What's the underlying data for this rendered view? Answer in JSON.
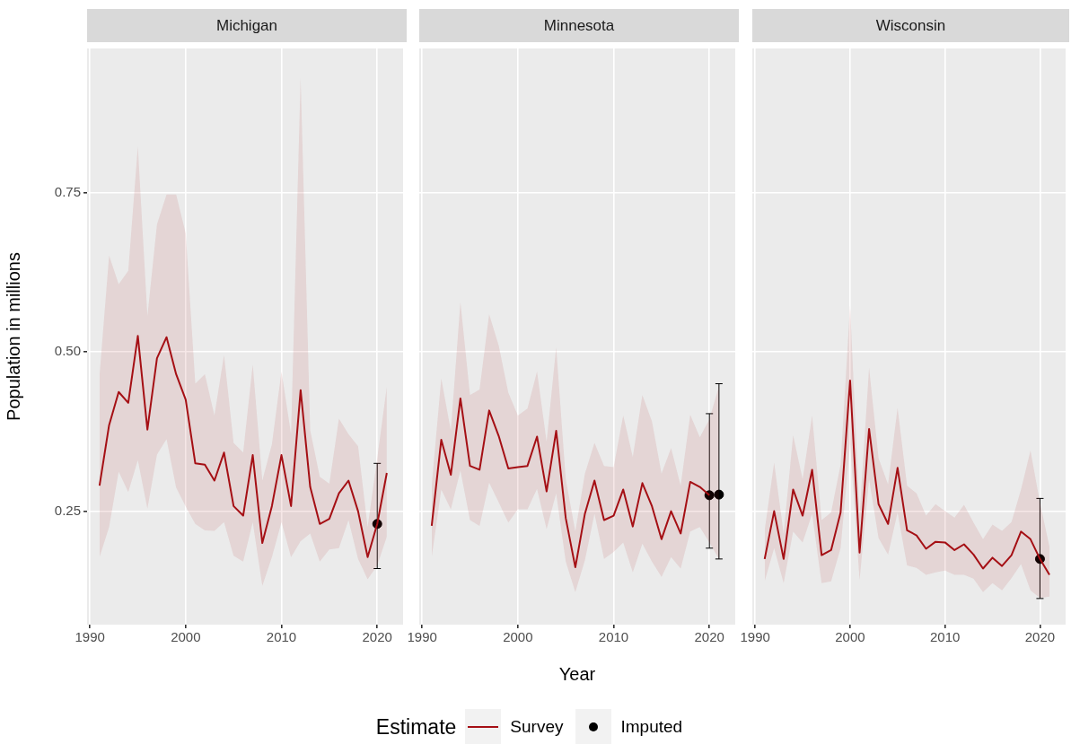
{
  "chart_data": [
    {
      "type": "line",
      "title": "Michigan",
      "ylabel": "Population in millions",
      "legend": "bottom",
      "legend_title": "Estimate",
      "xlim": [
        1989.7,
        2022.7
      ],
      "ylim": [
        0.072,
        0.976
      ],
      "xticks": [
        1990,
        2000,
        2010,
        2020
      ],
      "yticks": [
        {
          "value": 0.25,
          "label": "0.25"
        },
        {
          "value": 0.5,
          "label": "0.50"
        },
        {
          "value": 0.75,
          "label": "0.75"
        }
      ],
      "grid": true,
      "x": [
        1991,
        1992,
        1993,
        1994,
        1995,
        1996,
        1997,
        1998,
        1999,
        2000,
        2001,
        2002,
        2003,
        2004,
        2005,
        2006,
        2007,
        2008,
        2009,
        2010,
        2011,
        2012,
        2013,
        2014,
        2015,
        2016,
        2017,
        2018,
        2019,
        2020,
        2021
      ],
      "series": [
        {
          "name": "Survey",
          "color": "#a50f15",
          "line_style": "solid",
          "values": [
            0.29,
            0.385,
            0.437,
            0.42,
            0.525,
            0.378,
            0.49,
            0.523,
            0.465,
            0.425,
            0.325,
            0.323,
            0.298,
            0.342,
            0.258,
            0.243,
            0.338,
            0.2,
            0.258,
            0.338,
            0.258,
            0.44,
            0.288,
            0.23,
            0.238,
            0.278,
            0.298,
            0.25,
            0.178,
            0.23,
            0.31
          ],
          "lower": [
            0.178,
            0.225,
            0.312,
            0.28,
            0.33,
            0.254,
            0.339,
            0.363,
            0.287,
            0.257,
            0.23,
            0.22,
            0.219,
            0.233,
            0.18,
            0.171,
            0.233,
            0.133,
            0.178,
            0.233,
            0.178,
            0.203,
            0.215,
            0.171,
            0.19,
            0.192,
            0.236,
            0.175,
            0.143,
            0.165,
            0.21
          ],
          "upper": [
            0.463,
            0.651,
            0.606,
            0.627,
            0.822,
            0.556,
            0.7,
            0.747,
            0.747,
            0.686,
            0.45,
            0.465,
            0.4,
            0.495,
            0.357,
            0.342,
            0.48,
            0.298,
            0.355,
            0.469,
            0.371,
            0.93,
            0.377,
            0.304,
            0.293,
            0.395,
            0.371,
            0.352,
            0.225,
            0.333,
            0.445
          ]
        },
        {
          "name": "Imputed",
          "type": "scatter",
          "color": "#000000",
          "marker": "circle",
          "values": [
            null,
            null,
            null,
            null,
            null,
            null,
            null,
            null,
            null,
            null,
            null,
            null,
            null,
            null,
            null,
            null,
            null,
            null,
            null,
            null,
            null,
            null,
            null,
            null,
            null,
            null,
            null,
            null,
            null,
            0.23,
            null
          ],
          "errors": [
            null,
            null,
            null,
            null,
            null,
            null,
            null,
            null,
            null,
            null,
            null,
            null,
            null,
            null,
            null,
            null,
            null,
            null,
            null,
            null,
            null,
            null,
            null,
            null,
            null,
            null,
            null,
            null,
            null,
            [
              0.16,
              0.325
            ],
            null
          ]
        }
      ]
    },
    {
      "type": "line",
      "title": "Minnesota",
      "xlabel": "Year",
      "tick_labels": "x",
      "xlim": [
        1989.7,
        2022.7
      ],
      "ylim": [
        0.072,
        0.976
      ],
      "xticks": [
        1990,
        2000,
        2010,
        2020
      ],
      "yticks": [
        0.25,
        0.5,
        0.75
      ],
      "grid": true,
      "x": [
        1991,
        1992,
        1993,
        1994,
        1995,
        1996,
        1997,
        1998,
        1999,
        2000,
        2001,
        2002,
        2003,
        2004,
        2005,
        2006,
        2007,
        2008,
        2009,
        2010,
        2011,
        2012,
        2013,
        2014,
        2015,
        2016,
        2017,
        2018,
        2019,
        2020,
        2021
      ],
      "series": [
        {
          "color": "#a50f15",
          "line_style": "solid",
          "values": [
            0.227,
            0.362,
            0.307,
            0.427,
            0.321,
            0.315,
            0.408,
            0.368,
            0.317,
            0.319,
            0.321,
            0.367,
            0.281,
            0.376,
            0.239,
            0.162,
            0.246,
            0.298,
            0.236,
            0.243,
            0.284,
            0.226,
            0.294,
            0.258,
            0.206,
            0.25,
            0.215,
            0.296,
            0.288,
            0.275,
            null
          ],
          "lower": [
            0.178,
            0.284,
            0.253,
            0.314,
            0.236,
            0.227,
            0.295,
            0.264,
            0.232,
            0.253,
            0.253,
            0.285,
            0.222,
            0.278,
            0.171,
            0.123,
            0.173,
            0.246,
            0.175,
            0.186,
            0.201,
            0.154,
            0.199,
            0.171,
            0.147,
            0.178,
            0.16,
            0.218,
            0.225,
            0.201,
            0.175
          ],
          "upper": [
            0.29,
            0.458,
            0.376,
            0.578,
            0.432,
            0.441,
            0.559,
            0.51,
            0.436,
            0.4,
            0.411,
            0.469,
            0.359,
            0.507,
            0.3,
            0.218,
            0.309,
            0.357,
            0.321,
            0.319,
            0.4,
            0.335,
            0.432,
            0.391,
            0.309,
            0.349,
            0.29,
            0.401,
            0.366,
            0.394,
            0.446
          ]
        },
        {
          "type": "scatter",
          "color": "#000000",
          "marker": "circle",
          "values": [
            null,
            null,
            null,
            null,
            null,
            null,
            null,
            null,
            null,
            null,
            null,
            null,
            null,
            null,
            null,
            null,
            null,
            null,
            null,
            null,
            null,
            null,
            null,
            null,
            null,
            null,
            null,
            null,
            null,
            0.275,
            0.276
          ],
          "errors": [
            null,
            null,
            null,
            null,
            null,
            null,
            null,
            null,
            null,
            null,
            null,
            null,
            null,
            null,
            null,
            null,
            null,
            null,
            null,
            null,
            null,
            null,
            null,
            null,
            null,
            null,
            null,
            null,
            null,
            [
              0.192,
              0.403
            ],
            [
              0.175,
              0.45
            ]
          ]
        }
      ]
    },
    {
      "type": "line",
      "title": "Wisconsin",
      "tick_labels": "x",
      "xlim": [
        1989.7,
        2022.7
      ],
      "ylim": [
        0.072,
        0.976
      ],
      "xticks": [
        1990,
        2000,
        2010,
        2020
      ],
      "yticks": [
        0.25,
        0.5,
        0.75
      ],
      "grid": true,
      "x": [
        1991,
        1992,
        1993,
        1994,
        1995,
        1996,
        1997,
        1998,
        1999,
        2000,
        2001,
        2002,
        2003,
        2004,
        2005,
        2006,
        2007,
        2008,
        2009,
        2010,
        2011,
        2012,
        2013,
        2014,
        2015,
        2016,
        2017,
        2018,
        2019,
        2020,
        2021
      ],
      "series": [
        {
          "color": "#a50f15",
          "line_style": "solid",
          "values": [
            0.175,
            0.25,
            0.175,
            0.284,
            0.243,
            0.315,
            0.181,
            0.189,
            0.248,
            0.455,
            0.185,
            0.379,
            0.261,
            0.23,
            0.318,
            0.22,
            0.212,
            0.191,
            0.202,
            0.201,
            0.189,
            0.198,
            0.182,
            0.16,
            0.177,
            0.164,
            0.181,
            0.218,
            0.206,
            0.175,
            0.15
          ],
          "lower": [
            0.14,
            0.192,
            0.137,
            0.218,
            0.201,
            0.246,
            0.137,
            0.14,
            0.192,
            0.356,
            0.142,
            0.3,
            0.208,
            0.182,
            0.248,
            0.165,
            0.161,
            0.15,
            0.154,
            0.157,
            0.15,
            0.15,
            0.144,
            0.123,
            0.137,
            0.126,
            0.145,
            0.167,
            0.126,
            0.114,
            0.116
          ],
          "upper": [
            0.22,
            0.326,
            0.215,
            0.369,
            0.3,
            0.4,
            0.236,
            0.248,
            0.323,
            0.573,
            0.243,
            0.475,
            0.333,
            0.292,
            0.412,
            0.29,
            0.278,
            0.243,
            0.261,
            0.25,
            0.24,
            0.26,
            0.232,
            0.206,
            0.229,
            0.219,
            0.233,
            0.284,
            0.345,
            0.263,
            0.194
          ]
        },
        {
          "type": "scatter",
          "color": "#000000",
          "marker": "circle",
          "values": [
            null,
            null,
            null,
            null,
            null,
            null,
            null,
            null,
            null,
            null,
            null,
            null,
            null,
            null,
            null,
            null,
            null,
            null,
            null,
            null,
            null,
            null,
            null,
            null,
            null,
            null,
            null,
            null,
            null,
            0.175,
            null
          ],
          "errors": [
            null,
            null,
            null,
            null,
            null,
            null,
            null,
            null,
            null,
            null,
            null,
            null,
            null,
            null,
            null,
            null,
            null,
            null,
            null,
            null,
            null,
            null,
            null,
            null,
            null,
            null,
            null,
            null,
            null,
            [
              0.113,
              0.27
            ],
            null
          ]
        }
      ]
    }
  ]
}
